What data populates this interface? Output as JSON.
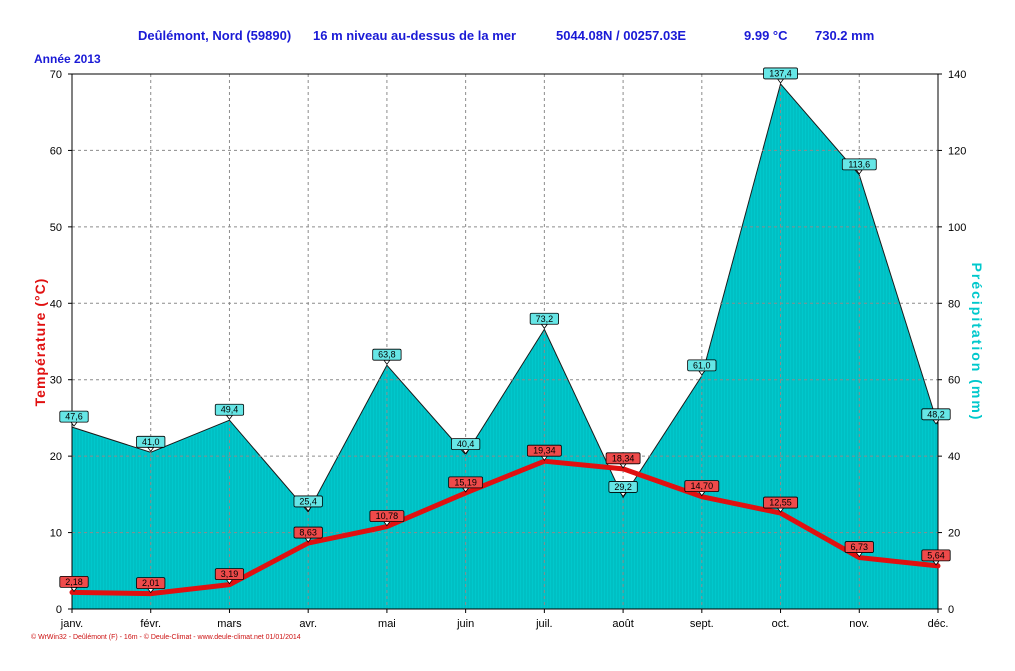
{
  "header": {
    "station": "Deûlémont, Nord (59890)",
    "altitude": "16 m niveau au-dessus de la mer",
    "coordinates": "5044.08N / 00257.03E",
    "mean_temperature": "9.99 °C",
    "total_precipitation": "730.2 mm"
  },
  "year_label": "Année  2013",
  "footer": "© WrWin32 - Deûlémont (F) - 16m - © Deule-Climat - www.deule-climat.net  01/01/2014",
  "colors": {
    "temperature": "#e01010",
    "precipitation": "#00c8cc",
    "title_text": "#1a1ad6",
    "grid": "#8c8c8c"
  },
  "chart_data": {
    "type": "area",
    "categories": [
      "janv.",
      "févr.",
      "mars",
      "avr.",
      "mai",
      "juin",
      "juil.",
      "août",
      "sept.",
      "oct.",
      "nov.",
      "déc."
    ],
    "series": [
      {
        "name": "Précipitation",
        "axis": "right",
        "type": "area",
        "values": [
          47.6,
          41.0,
          49.4,
          25.4,
          63.8,
          40.4,
          73.2,
          29.2,
          61.0,
          137.4,
          113.6,
          48.2
        ],
        "labels": [
          "47,6",
          "41,0",
          "49,4",
          "25,4",
          "63,8",
          "40,4",
          "73,2",
          "29,2",
          "61,0",
          "137,4",
          "113,6",
          "48,2"
        ]
      },
      {
        "name": "Température",
        "axis": "left",
        "type": "line",
        "values": [
          2.18,
          2.01,
          3.19,
          8.63,
          10.78,
          15.19,
          19.34,
          18.34,
          14.7,
          12.55,
          6.73,
          5.64
        ],
        "labels": [
          "2,18",
          "2,01",
          "3,19",
          "8,63",
          "10,78",
          "15,19",
          "19,34",
          "18,34",
          "14,70",
          "12,55",
          "6,73",
          "5,64"
        ]
      }
    ],
    "y_left": {
      "label": "Température  (°C)",
      "range": [
        0,
        70
      ],
      "ticks": [
        "0",
        "10",
        "20",
        "30",
        "40",
        "50",
        "60",
        "70"
      ]
    },
    "y_right": {
      "label": "Précipitation  (mm)",
      "range": [
        0,
        140
      ],
      "ticks": [
        "0",
        "20",
        "40",
        "60",
        "80",
        "100",
        "120",
        "140"
      ]
    },
    "grid": true
  }
}
